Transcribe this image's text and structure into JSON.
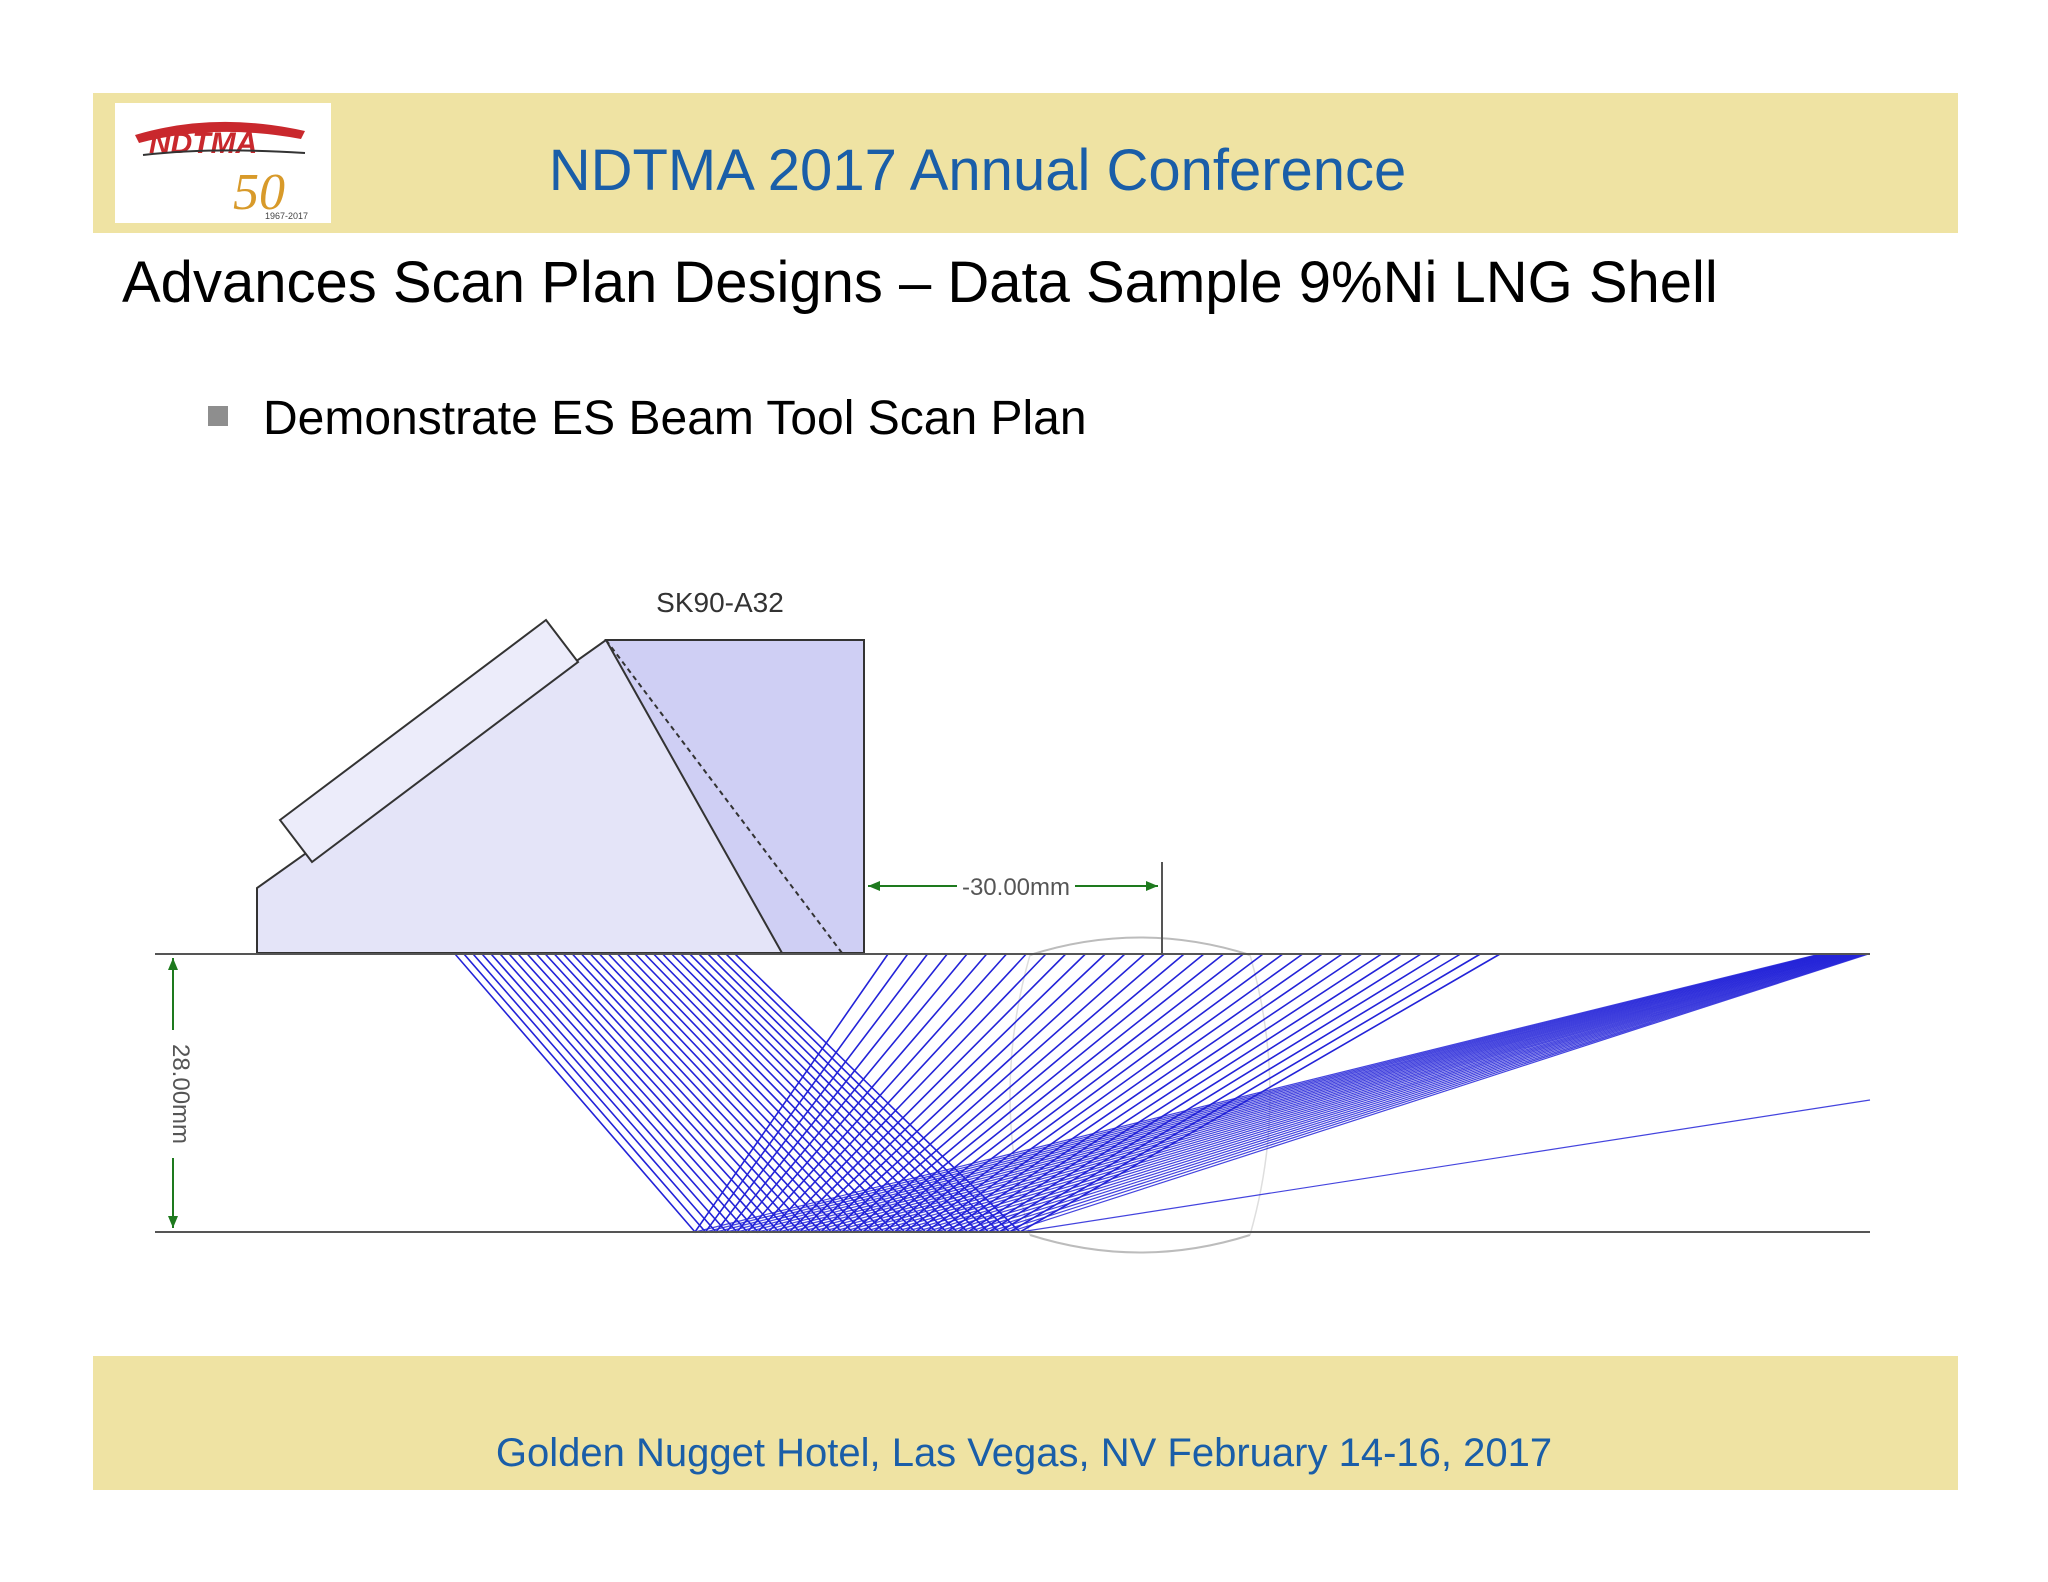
{
  "header": {
    "conference_title": "NDTMA 2017 Annual Conference",
    "logo": {
      "wordmark": "NDTMA",
      "anniversary": "50",
      "years": "1967-2017"
    }
  },
  "slide": {
    "title": "Advances Scan Plan Designs – Data Sample 9%Ni LNG Shell",
    "bullets": [
      "Demonstrate ES Beam Tool Scan Plan"
    ]
  },
  "diagram": {
    "probe_label": "SK90-A32",
    "offset_label": "-30.00mm",
    "thickness_label": "28.00mm",
    "colors": {
      "beam": "#2323d8",
      "wedge": "#d8d8f4",
      "dimension": "#1e7a1e"
    }
  },
  "footer": {
    "venue": "Golden Nugget Hotel, Las Vegas, NV  February 14-16, 2017"
  },
  "colors": {
    "band": "#efe3a3",
    "accent": "#1a5ea8"
  }
}
